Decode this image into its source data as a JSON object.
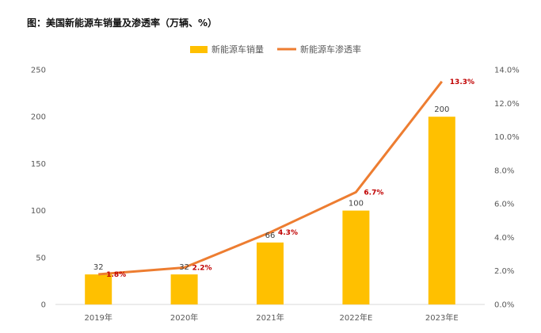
{
  "title": "图：美国新能源车销量及渗透率（万辆、%）",
  "colors": {
    "bar": "#FFC000",
    "line": "#ED7D31",
    "rate_label": "#C00000",
    "axis": "#D9D9D9",
    "tick": "#595959"
  },
  "chart_data": {
    "type": "bar",
    "categories": [
      "2019年",
      "2020年",
      "2021年",
      "2022年E",
      "2023年E"
    ],
    "series": [
      {
        "name": "新能源车销量",
        "type": "bar",
        "axis": "left",
        "values": [
          32,
          32,
          66,
          100,
          200
        ],
        "labels": [
          "32",
          "32",
          "66",
          "100",
          "200"
        ]
      },
      {
        "name": "新能源车渗透率",
        "type": "line",
        "axis": "right",
        "values": [
          1.8,
          2.2,
          4.3,
          6.7,
          13.3
        ],
        "labels": [
          "1.8%",
          "2.2%",
          "4.3%",
          "6.7%",
          "13.3%"
        ]
      }
    ],
    "y_left": {
      "min": 0,
      "max": 250,
      "ticks": [
        "0",
        "50",
        "100",
        "150",
        "200",
        "250"
      ]
    },
    "y_right": {
      "min": 0,
      "max": 14,
      "ticks": [
        "0.0%",
        "2.0%",
        "4.0%",
        "6.0%",
        "8.0%",
        "10.0%",
        "12.0%",
        "14.0%"
      ]
    },
    "legend_position": "top-center",
    "grid": false
  }
}
